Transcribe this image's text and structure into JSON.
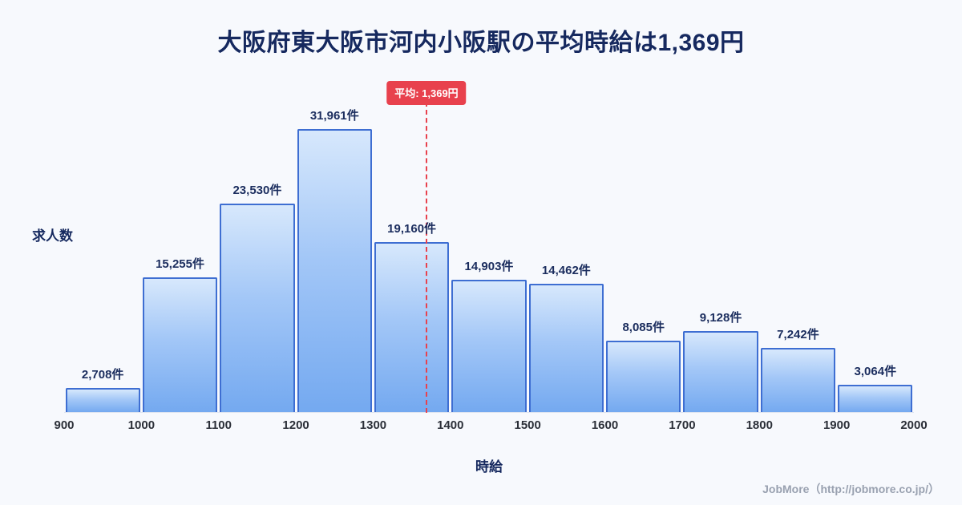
{
  "page": {
    "title": "大阪府東大阪市河内小阪駅の平均時給は1,369円",
    "footer": "JobMore（http://jobmore.co.jp/）"
  },
  "chart_data": {
    "type": "bar",
    "title": "大阪府東大阪市河内小阪駅の平均時給は1,369円",
    "xlabel": "時給",
    "ylabel": "求人数",
    "x_ticks": [
      "900",
      "1000",
      "1100",
      "1200",
      "1300",
      "1400",
      "1500",
      "1600",
      "1700",
      "1800",
      "1900",
      "2000"
    ],
    "bin_edges": [
      900,
      1000,
      1100,
      1200,
      1300,
      1400,
      1500,
      1600,
      1700,
      1800,
      1900,
      2000
    ],
    "values": [
      2708,
      15255,
      23530,
      31961,
      19160,
      14903,
      14462,
      8085,
      9128,
      7242,
      3064
    ],
    "bar_labels": [
      "2,708件",
      "15,255件",
      "23,530件",
      "31,961件",
      "19,160件",
      "14,903件",
      "14,462件",
      "8,085件",
      "9,128件",
      "7,242件",
      "3,064件"
    ],
    "average": {
      "value": 1369,
      "label": "平均: 1,369円"
    },
    "xlim": [
      900,
      2000
    ],
    "ylim": [
      0,
      35000
    ],
    "grid": false,
    "legend": "none",
    "colors": {
      "bar_gradient_top": "#d7e8fc",
      "bar_gradient_bottom": "#74a9f0",
      "bar_border": "#3e6ed2",
      "average_line": "#e8414d",
      "title": "#16295f",
      "background": "#f7f9fd",
      "footer_text": "#99a1b0"
    }
  }
}
